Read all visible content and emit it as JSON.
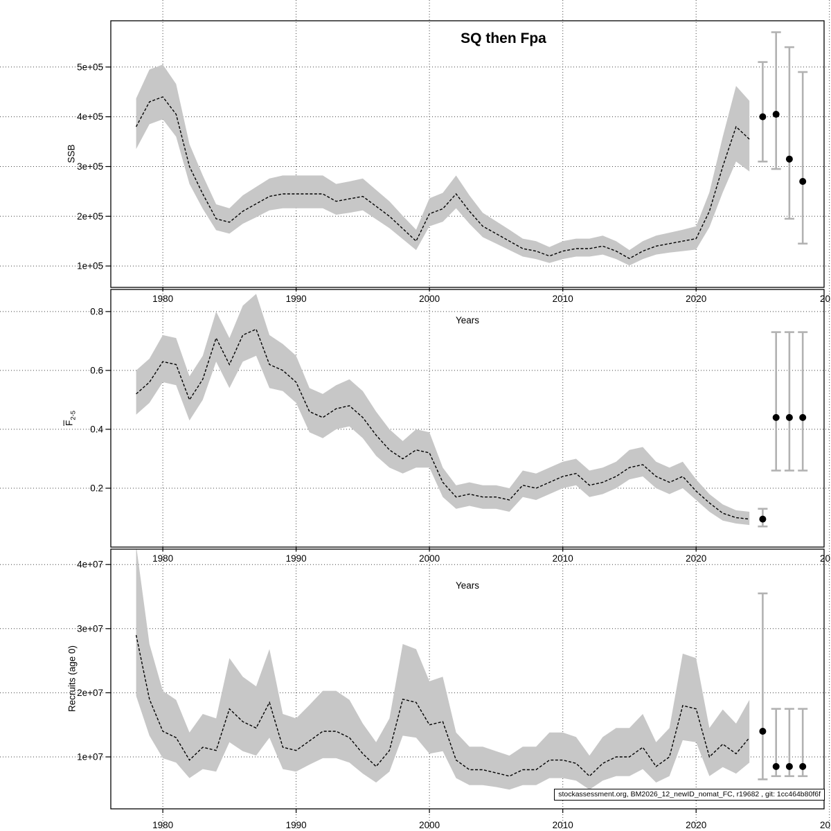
{
  "title": "SQ then Fpa",
  "xlabel": "Years",
  "footer": "stockassessment.org, BM2026_12_newID_nomat_FC, r19682 , git: 1cc464b80f6f",
  "x": {
    "lim": [
      1976.1,
      2029.6
    ],
    "tick_values": [
      1980,
      1990,
      2000,
      2010,
      2020,
      2030
    ],
    "tick_labels": [
      "1980",
      "1990",
      "2000",
      "2010",
      "2020",
      "20"
    ]
  },
  "chart_data": [
    {
      "type": "area",
      "name": "ssb",
      "ylabel": "SSB",
      "ylim": [
        57000,
        593000
      ],
      "ytick_values": [
        100000,
        200000,
        300000,
        400000,
        500000
      ],
      "ytick_labels": [
        "1e+05",
        "2e+05",
        "3e+05",
        "4e+05",
        "5e+05"
      ],
      "years": [
        1978,
        1979,
        1980,
        1981,
        1982,
        1983,
        1984,
        1985,
        1986,
        1987,
        1988,
        1989,
        1990,
        1991,
        1992,
        1993,
        1994,
        1995,
        1996,
        1997,
        1998,
        1999,
        2000,
        2001,
        2002,
        2003,
        2004,
        2005,
        2006,
        2007,
        2008,
        2009,
        2010,
        2011,
        2012,
        2013,
        2014,
        2015,
        2016,
        2017,
        2018,
        2019,
        2020,
        2021,
        2022,
        2023,
        2024
      ],
      "mean": [
        380000,
        430000,
        440000,
        405000,
        300000,
        245000,
        195000,
        188000,
        210000,
        225000,
        240000,
        245000,
        245000,
        245000,
        245000,
        230000,
        235000,
        240000,
        220000,
        200000,
        175000,
        150000,
        205000,
        215000,
        245000,
        210000,
        180000,
        165000,
        150000,
        135000,
        130000,
        120000,
        130000,
        135000,
        135000,
        140000,
        130000,
        115000,
        130000,
        140000,
        145000,
        150000,
        155000,
        210000,
        300000,
        380000,
        355000
      ],
      "lo": [
        335000,
        385000,
        395000,
        360000,
        265000,
        215000,
        172000,
        165000,
        185000,
        198000,
        212000,
        216000,
        216000,
        216000,
        216000,
        203000,
        207000,
        212000,
        194000,
        176000,
        154000,
        132000,
        180000,
        189000,
        216000,
        185000,
        158000,
        145000,
        132000,
        119000,
        114000,
        106000,
        114000,
        119000,
        119000,
        123000,
        114000,
        101000,
        114000,
        123000,
        127000,
        130000,
        133000,
        178000,
        248000,
        310000,
        290000
      ],
      "hi": [
        437000,
        495000,
        505000,
        466000,
        345000,
        282000,
        224000,
        216000,
        242000,
        259000,
        276000,
        282000,
        282000,
        282000,
        282000,
        265000,
        270000,
        276000,
        253000,
        230000,
        201000,
        173000,
        236000,
        247000,
        282000,
        242000,
        207000,
        190000,
        173000,
        155000,
        150000,
        138000,
        150000,
        155000,
        155000,
        161000,
        150000,
        132000,
        150000,
        161000,
        167000,
        173000,
        180000,
        248000,
        360000,
        462000,
        432000
      ],
      "forecast": {
        "years": [
          2025,
          2026,
          2027,
          2028
        ],
        "mean": [
          400000,
          405000,
          315000,
          270000
        ],
        "lo": [
          310000,
          295000,
          195000,
          145000
        ],
        "hi": [
          510000,
          570000,
          540000,
          490000
        ]
      }
    },
    {
      "type": "area",
      "name": "fbar",
      "ylabel": "F",
      "ylabel_sub": "2-5",
      "ylim": [
        0,
        0.875
      ],
      "ytick_values": [
        0.2,
        0.4,
        0.6,
        0.8
      ],
      "ytick_labels": [
        "0.2",
        "0.4",
        "0.6",
        "0.8"
      ],
      "years": [
        1978,
        1979,
        1980,
        1981,
        1982,
        1983,
        1984,
        1985,
        1986,
        1987,
        1988,
        1989,
        1990,
        1991,
        1992,
        1993,
        1994,
        1995,
        1996,
        1997,
        1998,
        1999,
        2000,
        2001,
        2002,
        2003,
        2004,
        2005,
        2006,
        2007,
        2008,
        2009,
        2010,
        2011,
        2012,
        2013,
        2014,
        2015,
        2016,
        2017,
        2018,
        2019,
        2020,
        2021,
        2022,
        2023,
        2024
      ],
      "mean": [
        0.52,
        0.56,
        0.63,
        0.62,
        0.5,
        0.57,
        0.71,
        0.62,
        0.72,
        0.74,
        0.62,
        0.6,
        0.56,
        0.46,
        0.44,
        0.47,
        0.48,
        0.44,
        0.38,
        0.33,
        0.3,
        0.33,
        0.32,
        0.22,
        0.17,
        0.18,
        0.17,
        0.17,
        0.16,
        0.21,
        0.2,
        0.22,
        0.24,
        0.25,
        0.21,
        0.22,
        0.24,
        0.27,
        0.28,
        0.24,
        0.22,
        0.24,
        0.19,
        0.15,
        0.115,
        0.1,
        0.095
      ],
      "lo": [
        0.45,
        0.49,
        0.56,
        0.55,
        0.43,
        0.5,
        0.63,
        0.54,
        0.63,
        0.65,
        0.54,
        0.53,
        0.49,
        0.39,
        0.37,
        0.4,
        0.41,
        0.37,
        0.31,
        0.27,
        0.25,
        0.27,
        0.27,
        0.17,
        0.13,
        0.14,
        0.13,
        0.13,
        0.12,
        0.17,
        0.16,
        0.18,
        0.2,
        0.21,
        0.17,
        0.18,
        0.2,
        0.23,
        0.24,
        0.2,
        0.18,
        0.2,
        0.16,
        0.12,
        0.09,
        0.08,
        0.075
      ],
      "hi": [
        0.6,
        0.64,
        0.72,
        0.71,
        0.58,
        0.65,
        0.8,
        0.71,
        0.82,
        0.86,
        0.72,
        0.69,
        0.65,
        0.54,
        0.52,
        0.55,
        0.57,
        0.53,
        0.46,
        0.4,
        0.36,
        0.4,
        0.39,
        0.27,
        0.21,
        0.22,
        0.21,
        0.21,
        0.2,
        0.26,
        0.25,
        0.27,
        0.29,
        0.3,
        0.26,
        0.27,
        0.29,
        0.33,
        0.34,
        0.29,
        0.27,
        0.29,
        0.23,
        0.18,
        0.145,
        0.125,
        0.12
      ],
      "forecast": {
        "years": [
          2025,
          2026,
          2027,
          2028
        ],
        "mean": [
          0.095,
          0.44,
          0.44,
          0.44
        ],
        "lo": [
          0.07,
          0.26,
          0.26,
          0.26
        ],
        "hi": [
          0.13,
          0.73,
          0.73,
          0.73
        ]
      }
    },
    {
      "type": "area",
      "name": "recruits",
      "ylabel": "Recruits (age 0)",
      "ylim": [
        1900000,
        42400000
      ],
      "ytick_values": [
        10000000,
        20000000,
        30000000,
        40000000
      ],
      "ytick_labels": [
        "1e+07",
        "2e+07",
        "3e+07",
        "4e+07"
      ],
      "years": [
        1978,
        1979,
        1980,
        1981,
        1982,
        1983,
        1984,
        1985,
        1986,
        1987,
        1988,
        1989,
        1990,
        1991,
        1992,
        1993,
        1994,
        1995,
        1996,
        1997,
        1998,
        1999,
        2000,
        2001,
        2002,
        2003,
        2004,
        2005,
        2006,
        2007,
        2008,
        2009,
        2010,
        2011,
        2012,
        2013,
        2014,
        2015,
        2016,
        2017,
        2018,
        2019,
        2020,
        2021,
        2022,
        2023,
        2024
      ],
      "mean": [
        29000000,
        19000000,
        14000000,
        13000000,
        9500000,
        11500000,
        11000000,
        17500000,
        15500000,
        14500000,
        18500000,
        11500000,
        11000000,
        12500000,
        14000000,
        14000000,
        13000000,
        10500000,
        8500000,
        11000000,
        19000000,
        18500000,
        15000000,
        15500000,
        9500000,
        8000000,
        8000000,
        7500000,
        7000000,
        8000000,
        8000000,
        9500000,
        9500000,
        9000000,
        7000000,
        9000000,
        10000000,
        10000000,
        11500000,
        8500000,
        10000000,
        18000000,
        17500000,
        10000000,
        12000000,
        10500000,
        13000000
      ],
      "lo": [
        19500000,
        13300000,
        9800000,
        9100000,
        6700000,
        8100000,
        7700000,
        12300000,
        10900000,
        10200000,
        13000000,
        8100000,
        7700000,
        8800000,
        9800000,
        9800000,
        9100000,
        7400000,
        6000000,
        7700000,
        13300000,
        13000000,
        10500000,
        10900000,
        6700000,
        5600000,
        5600000,
        5300000,
        4900000,
        5600000,
        5600000,
        6700000,
        6700000,
        6300000,
        4900000,
        6300000,
        7000000,
        7000000,
        8100000,
        6000000,
        7000000,
        12600000,
        12300000,
        7000000,
        8400000,
        7400000,
        9100000
      ],
      "hi": [
        43000000,
        27600000,
        20300000,
        18900000,
        13800000,
        16700000,
        16000000,
        25400000,
        22500000,
        21000000,
        26800000,
        16700000,
        16000000,
        18100000,
        20300000,
        20300000,
        18900000,
        15200000,
        12300000,
        16000000,
        27600000,
        26800000,
        21800000,
        22500000,
        13800000,
        11600000,
        11600000,
        10900000,
        10200000,
        11600000,
        11600000,
        13800000,
        13800000,
        13100000,
        10200000,
        13100000,
        14500000,
        14500000,
        16700000,
        12300000,
        14500000,
        26100000,
        25400000,
        14500000,
        17400000,
        15200000,
        18900000
      ],
      "forecast": {
        "years": [
          2025,
          2026,
          2027,
          2028
        ],
        "mean": [
          14000000,
          8500000,
          8500000,
          8500000
        ],
        "lo": [
          6500000,
          7000000,
          7000000,
          7000000
        ],
        "hi": [
          35500000,
          17500000,
          17500000,
          17500000
        ]
      }
    }
  ]
}
